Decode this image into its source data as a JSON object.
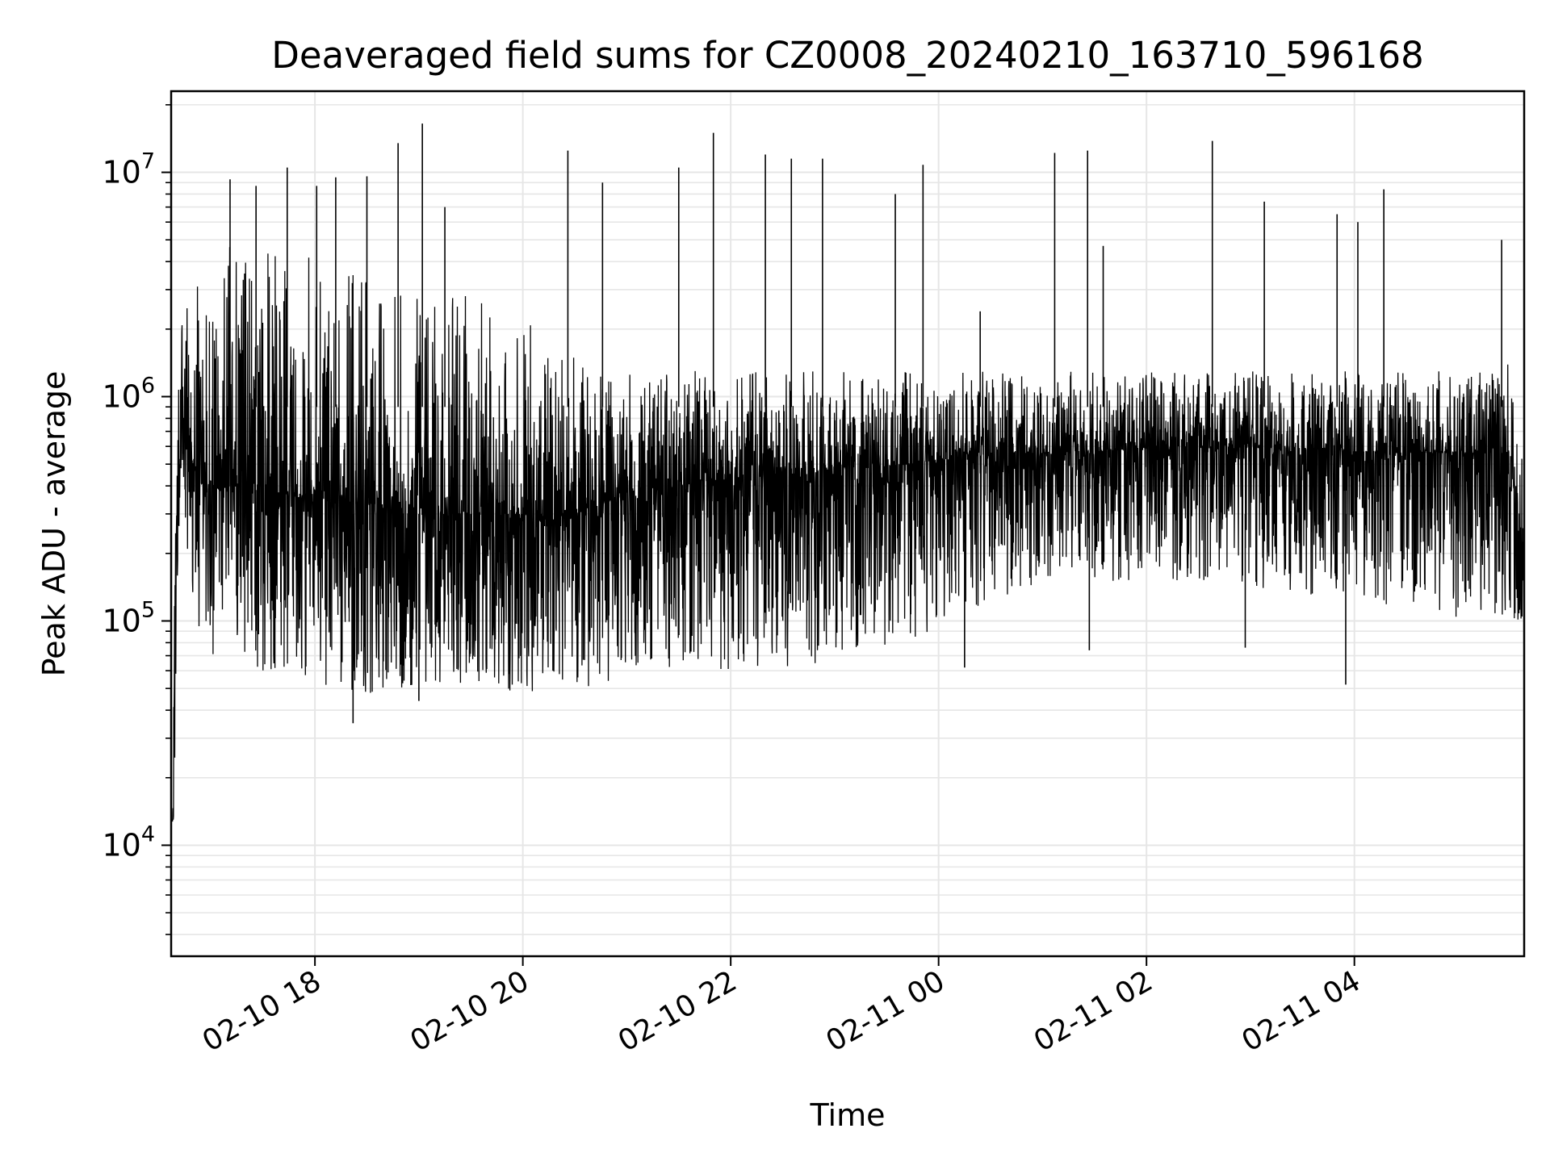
{
  "chart_data": {
    "type": "line",
    "title": "Deaveraged field sums for CZ0008_20240210_163710_596168",
    "xlabel": "Time",
    "ylabel": "Peak ADU - average",
    "xscale": "time",
    "yscale": "log",
    "xlim": [
      "2024-02-10 16:37",
      "2024-02-11 05:38"
    ],
    "ylim": [
      3200,
      23000000
    ],
    "x_ticks": [
      {
        "t": "2024-02-10 18:00",
        "label": "02-10 18"
      },
      {
        "t": "2024-02-10 20:00",
        "label": "02-10 20"
      },
      {
        "t": "2024-02-10 22:00",
        "label": "02-10 22"
      },
      {
        "t": "2024-02-11 00:00",
        "label": "02-11 00"
      },
      {
        "t": "2024-02-11 02:00",
        "label": "02-11 02"
      },
      {
        "t": "2024-02-11 04:00",
        "label": "02-11 04"
      }
    ],
    "y_ticks": [
      {
        "value": 10000,
        "label_base": "10",
        "label_exp": "4"
      },
      {
        "value": 100000,
        "label_base": "10",
        "label_exp": "5"
      },
      {
        "value": 1000000,
        "label_base": "10",
        "label_exp": "6"
      },
      {
        "value": 10000000,
        "label_base": "10",
        "label_exp": "7"
      }
    ],
    "grid": true,
    "grid_minor": true,
    "line_color": "#000000",
    "grid_color": "#e6e6e6",
    "series": [
      {
        "x": [
          "2024-02-10 16:37",
          "2024-02-10 16:38",
          "2024-02-10 16:39",
          "2024-02-10 16:41",
          "2024-02-10 16:43",
          "2024-02-10 16:46",
          "2024-02-10 16:50",
          "2024-02-10 16:55",
          "2024-02-10 17:00",
          "2024-02-10 17:05",
          "2024-02-10 17:10",
          "2024-02-10 17:15",
          "2024-02-10 17:20",
          "2024-02-10 17:25",
          "2024-02-10 17:30",
          "2024-02-10 17:35",
          "2024-02-10 17:40",
          "2024-02-10 17:45",
          "2024-02-10 17:50",
          "2024-02-10 17:55",
          "2024-02-10 18:00",
          "2024-02-10 18:10",
          "2024-02-10 18:20",
          "2024-02-10 18:30",
          "2024-02-10 18:40",
          "2024-02-10 18:50",
          "2024-02-10 19:00",
          "2024-02-10 19:10",
          "2024-02-10 19:20",
          "2024-02-10 19:30",
          "2024-02-10 19:40",
          "2024-02-10 19:50",
          "2024-02-10 20:00",
          "2024-02-10 20:10",
          "2024-02-10 20:20",
          "2024-02-10 20:30",
          "2024-02-10 20:40",
          "2024-02-10 20:50",
          "2024-02-10 21:00",
          "2024-02-10 21:15",
          "2024-02-10 21:30",
          "2024-02-10 21:45",
          "2024-02-10 22:00",
          "2024-02-10 22:15",
          "2024-02-10 22:30",
          "2024-02-10 22:45",
          "2024-02-10 23:00",
          "2024-02-10 23:15",
          "2024-02-10 23:30",
          "2024-02-10 23:45",
          "2024-02-11 00:00",
          "2024-02-11 00:15",
          "2024-02-11 00:30",
          "2024-02-11 00:45",
          "2024-02-11 01:00",
          "2024-02-11 01:15",
          "2024-02-11 01:30",
          "2024-02-11 01:45",
          "2024-02-11 02:00",
          "2024-02-11 02:15",
          "2024-02-11 02:30",
          "2024-02-11 02:45",
          "2024-02-11 03:00",
          "2024-02-11 03:15",
          "2024-02-11 03:30",
          "2024-02-11 03:45",
          "2024-02-11 04:00",
          "2024-02-11 04:15",
          "2024-02-11 04:30",
          "2024-02-11 04:45",
          "2024-02-11 05:00",
          "2024-02-11 05:15",
          "2024-02-11 05:30",
          "2024-02-11 05:38"
        ],
        "median": [
          13000,
          13000,
          130000,
          300000,
          800000,
          600000,
          500000,
          400000,
          420000,
          380000,
          400000,
          450000,
          400000,
          420000,
          380000,
          400000,
          360000,
          380000,
          350000,
          380000,
          360000,
          340000,
          330000,
          330000,
          320000,
          320000,
          310000,
          300000,
          300000,
          300000,
          290000,
          300000,
          300000,
          280000,
          290000,
          300000,
          320000,
          340000,
          360000,
          380000,
          400000,
          420000,
          430000,
          440000,
          450000,
          460000,
          470000,
          480000,
          490000,
          500000,
          520000,
          540000,
          550000,
          560000,
          560000,
          570000,
          570000,
          580000,
          590000,
          600000,
          600000,
          600000,
          590000,
          590000,
          580000,
          580000,
          570000,
          570000,
          560000,
          560000,
          560000,
          560000,
          560000,
          150000
        ],
        "low": [
          13000,
          12500,
          13000,
          200000,
          500000,
          200000,
          100000,
          80000,
          70000,
          70000,
          80000,
          75000,
          70000,
          60000,
          60000,
          60000,
          60000,
          55000,
          55000,
          55000,
          55000,
          50000,
          48000,
          48000,
          46000,
          46000,
          48000,
          48000,
          50000,
          50000,
          48000,
          48000,
          46000,
          48000,
          48000,
          50000,
          50000,
          52000,
          55000,
          58000,
          60000,
          62000,
          60000,
          58000,
          60000,
          62000,
          65000,
          68000,
          70000,
          72000,
          100000,
          110000,
          120000,
          130000,
          140000,
          150000,
          150000,
          150000,
          150000,
          150000,
          150000,
          150000,
          140000,
          140000,
          130000,
          130000,
          120000,
          120000,
          110000,
          110000,
          100000,
          100000,
          100000,
          100000
        ],
        "high": [
          13000,
          13000,
          130000,
          1500000,
          2500000,
          3500000,
          4000000,
          5000000,
          4500000,
          4000000,
          5000000,
          4500000,
          5000000,
          4000000,
          4500000,
          5000000,
          4000000,
          4500000,
          4000000,
          4500000,
          4000000,
          3500000,
          3500000,
          3500000,
          3000000,
          3000000,
          3000000,
          3000000,
          3000000,
          2800000,
          2800000,
          2500000,
          2500000,
          2000000,
          1800000,
          1600000,
          1500000,
          1400000,
          1300000,
          1300000,
          1300000,
          1300000,
          1300000,
          1300000,
          1300000,
          1300000,
          1300000,
          1300000,
          1300000,
          1300000,
          1300000,
          1300000,
          1300000,
          1300000,
          1300000,
          1300000,
          1300000,
          1300000,
          1300000,
          1300000,
          1300000,
          1300000,
          1300000,
          1300000,
          1300000,
          1300000,
          1300000,
          1300000,
          1300000,
          1300000,
          1300000,
          1300000,
          1500000,
          1500000
        ]
      }
    ],
    "spikes": [
      {
        "t": "2024-02-10 17:11",
        "value": 9300000
      },
      {
        "t": "2024-02-10 17:26",
        "value": 8700000
      },
      {
        "t": "2024-02-10 17:44",
        "value": 10500000
      },
      {
        "t": "2024-02-10 18:01",
        "value": 8700000
      },
      {
        "t": "2024-02-10 18:12",
        "value": 9500000
      },
      {
        "t": "2024-02-10 18:30",
        "value": 9600000
      },
      {
        "t": "2024-02-10 18:48",
        "value": 13500000
      },
      {
        "t": "2024-02-10 19:02",
        "value": 16500000
      },
      {
        "t": "2024-02-10 19:15",
        "value": 7000000
      },
      {
        "t": "2024-02-10 20:26",
        "value": 12500000
      },
      {
        "t": "2024-02-10 20:46",
        "value": 9000000
      },
      {
        "t": "2024-02-10 21:30",
        "value": 10500000
      },
      {
        "t": "2024-02-10 21:50",
        "value": 15000000
      },
      {
        "t": "2024-02-10 22:20",
        "value": 12000000
      },
      {
        "t": "2024-02-10 22:35",
        "value": 11500000
      },
      {
        "t": "2024-02-10 22:53",
        "value": 11500000
      },
      {
        "t": "2024-02-10 23:35",
        "value": 8000000
      },
      {
        "t": "2024-02-10 23:51",
        "value": 10800000
      },
      {
        "t": "2024-02-11 01:07",
        "value": 12200000
      },
      {
        "t": "2024-02-11 01:26",
        "value": 12500000
      },
      {
        "t": "2024-02-11 02:38",
        "value": 13800000
      },
      {
        "t": "2024-02-11 03:08",
        "value": 7400000
      },
      {
        "t": "2024-02-11 04:17",
        "value": 8400000
      },
      {
        "t": "2024-02-11 04:02",
        "value": 6000000
      },
      {
        "t": "2024-02-11 03:50",
        "value": 6500000
      },
      {
        "t": "2024-02-11 05:25",
        "value": 5000000
      },
      {
        "t": "2024-02-11 00:24",
        "value": 2400000
      },
      {
        "t": "2024-02-11 01:35",
        "value": 4700000
      }
    ],
    "dips": [
      {
        "t": "2024-02-10 18:22",
        "value": 35000
      },
      {
        "t": "2024-02-10 19:00",
        "value": 44000
      },
      {
        "t": "2024-02-11 00:15",
        "value": 62000
      },
      {
        "t": "2024-02-11 01:27",
        "value": 74000
      },
      {
        "t": "2024-02-11 02:57",
        "value": 76000
      },
      {
        "t": "2024-02-11 03:55",
        "value": 52000
      }
    ]
  }
}
